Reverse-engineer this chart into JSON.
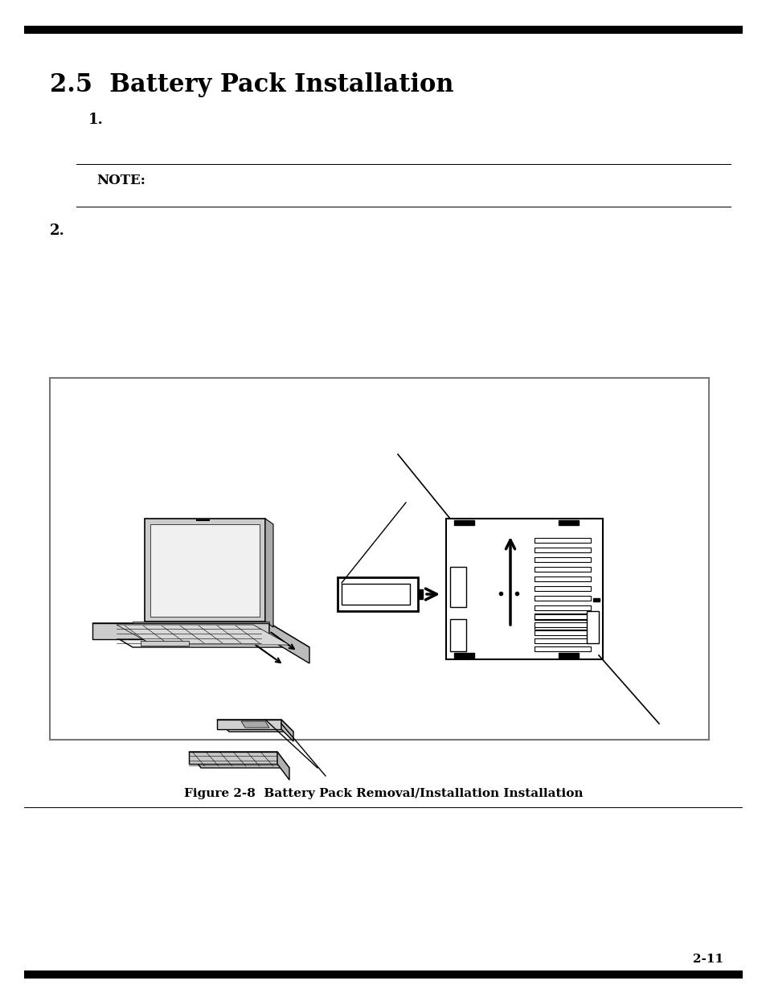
{
  "title": "2.5  Battery Pack Installation",
  "step1_label": "1.",
  "note_label": "NOTE:",
  "step2_label": "2.",
  "figure_caption": "Figure 2-8  Battery Pack Removal/Installation Installation",
  "page_number": "2-11",
  "bg_color": "#ffffff",
  "text_color": "#000000"
}
